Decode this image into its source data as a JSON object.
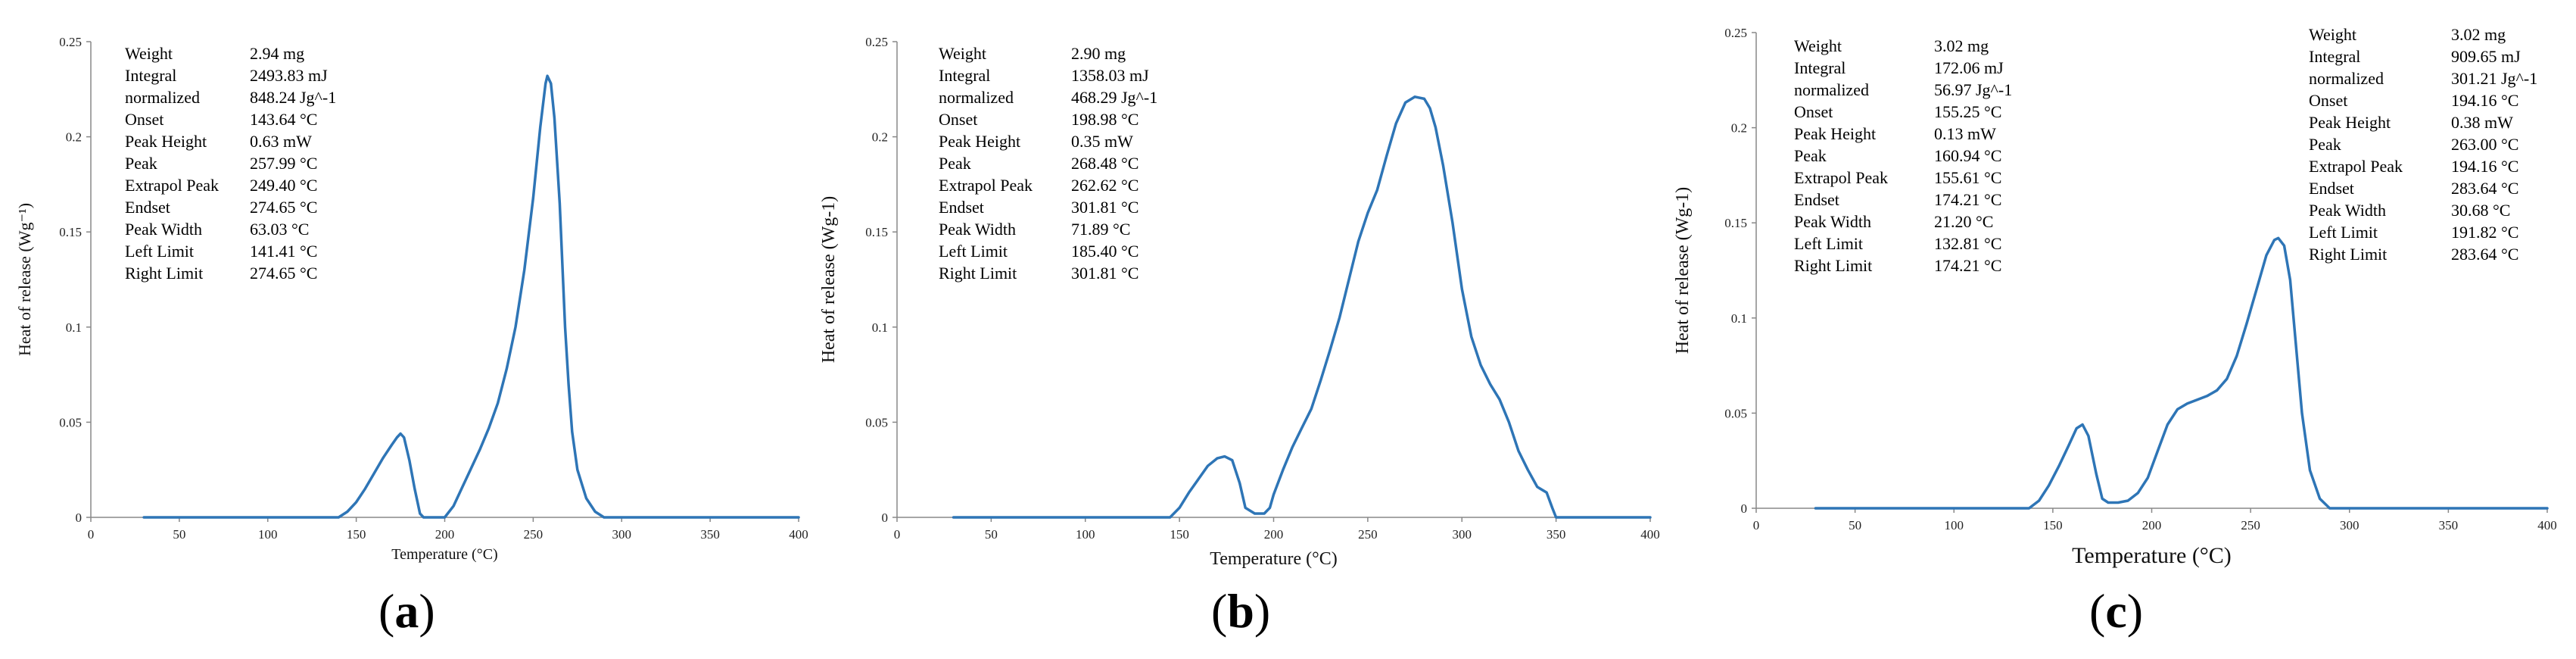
{
  "chart_data": [
    {
      "type": "line",
      "panel_label": "(a)",
      "panel_letter": "a",
      "xlabel": "Temperature (°C)",
      "ylabel": "Heat of release (Wg⁻¹)",
      "xlim": [
        0,
        400
      ],
      "ylim": [
        0,
        0.25
      ],
      "x_ticks": [
        0,
        50,
        100,
        150,
        200,
        250,
        300,
        350,
        400
      ],
      "y_ticks": [
        0,
        0.05,
        0.1,
        0.15,
        0.2,
        0.25
      ],
      "grid": false,
      "color": "#2E75B6",
      "series": [
        {
          "x": [
            30,
            140,
            145,
            150,
            155,
            160,
            165,
            170,
            173,
            175,
            177,
            180,
            183,
            186,
            188,
            200,
            205,
            210,
            215,
            220,
            225,
            230,
            235,
            240,
            245,
            250,
            254,
            257,
            258,
            260,
            262,
            265,
            268,
            270,
            272,
            275,
            280,
            285,
            290,
            300,
            400
          ],
          "y": [
            0,
            0,
            0.003,
            0.008,
            0.015,
            0.023,
            0.031,
            0.038,
            0.042,
            0.044,
            0.042,
            0.03,
            0.015,
            0.002,
            0,
            0,
            0.006,
            0.016,
            0.026,
            0.036,
            0.047,
            0.06,
            0.078,
            0.1,
            0.13,
            0.168,
            0.205,
            0.228,
            0.232,
            0.228,
            0.21,
            0.165,
            0.1,
            0.07,
            0.045,
            0.025,
            0.01,
            0.003,
            0,
            0,
            0
          ]
        }
      ],
      "stats": [
        {
          "label": "Weight",
          "value": "2.94 mg"
        },
        {
          "label": "Integral",
          "value": "2493.83 mJ"
        },
        {
          "label": "  normalized",
          "value": "848.24 Jg^-1"
        },
        {
          "label": "Onset",
          "value": "143.64 °C"
        },
        {
          "label": "Peak Height",
          "value": "0.63 mW"
        },
        {
          "label": "Peak",
          "value": "257.99 °C"
        },
        {
          "label": "Extrapol Peak",
          "value": "249.40 °C"
        },
        {
          "label": "Endset",
          "value": "274.65 °C"
        },
        {
          "label": "Peak Width",
          "value": "63.03 °C"
        },
        {
          "label": "Left Limit",
          "value": "141.41 °C"
        },
        {
          "label": "Right Limit",
          "value": "274.65 °C"
        }
      ]
    },
    {
      "type": "line",
      "panel_label": "(b)",
      "panel_letter": "b",
      "xlabel": "Temperature (°C)",
      "ylabel": "Heat of release (Wg-1)",
      "xlim": [
        0,
        400
      ],
      "ylim": [
        0,
        0.25
      ],
      "x_ticks": [
        0,
        50,
        100,
        150,
        200,
        250,
        300,
        350,
        400
      ],
      "y_ticks": [
        0,
        0.05,
        0.1,
        0.15,
        0.2,
        0.25
      ],
      "grid": false,
      "color": "#2E75B6",
      "series": [
        {
          "x": [
            30,
            145,
            150,
            155,
            160,
            165,
            170,
            174,
            178,
            182,
            185,
            190,
            195,
            198,
            200,
            205,
            210,
            215,
            220,
            225,
            230,
            235,
            240,
            245,
            250,
            255,
            260,
            265,
            270,
            275,
            280,
            283,
            286,
            290,
            295,
            300,
            305,
            310,
            315,
            320,
            325,
            330,
            335,
            340,
            345,
            348,
            350,
            400
          ],
          "y": [
            0,
            0,
            0.005,
            0.013,
            0.02,
            0.027,
            0.031,
            0.032,
            0.03,
            0.018,
            0.005,
            0.002,
            0.002,
            0.005,
            0.012,
            0.025,
            0.037,
            0.047,
            0.057,
            0.072,
            0.088,
            0.105,
            0.125,
            0.145,
            0.16,
            0.172,
            0.19,
            0.207,
            0.218,
            0.221,
            0.22,
            0.215,
            0.205,
            0.185,
            0.155,
            0.12,
            0.095,
            0.08,
            0.07,
            0.062,
            0.05,
            0.035,
            0.025,
            0.016,
            0.013,
            0.005,
            0,
            0
          ]
        }
      ],
      "stats": [
        {
          "label": "Weight",
          "value": "2.90 mg"
        },
        {
          "label": "Integral",
          "value": "1358.03 mJ"
        },
        {
          "label": "  normalized",
          "value": "468.29 Jg^-1"
        },
        {
          "label": "Onset",
          "value": "198.98 °C"
        },
        {
          "label": "Peak Height",
          "value": "0.35 mW"
        },
        {
          "label": "Peak",
          "value": "268.48 °C"
        },
        {
          "label": "Extrapol Peak",
          "value": "262.62 °C"
        },
        {
          "label": "Endset",
          "value": "301.81 °C"
        },
        {
          "label": "Peak Width",
          "value": "71.89 °C"
        },
        {
          "label": "Left Limit",
          "value": "185.40 °C"
        },
        {
          "label": "Right Limit",
          "value": "301.81 °C"
        }
      ]
    },
    {
      "type": "line",
      "panel_label": "(c)",
      "panel_letter": "c",
      "xlabel": "Temperature (°C)",
      "ylabel": "Heat of release (Wg-1)",
      "xlim": [
        0,
        400
      ],
      "ylim": [
        0,
        0.25
      ],
      "x_ticks": [
        0,
        50,
        100,
        150,
        200,
        250,
        300,
        350,
        400
      ],
      "y_ticks": [
        0,
        0.05,
        0.1,
        0.15,
        0.2,
        0.25
      ],
      "grid": false,
      "color": "#2E75B6",
      "series": [
        {
          "x": [
            30,
            138,
            143,
            148,
            153,
            158,
            162,
            165,
            168,
            172,
            175,
            178,
            183,
            188,
            193,
            198,
            203,
            208,
            213,
            218,
            223,
            228,
            233,
            238,
            243,
            248,
            253,
            258,
            262,
            264,
            267,
            270,
            273,
            276,
            280,
            285,
            290,
            400
          ],
          "y": [
            0,
            0,
            0.004,
            0.012,
            0.022,
            0.033,
            0.042,
            0.044,
            0.038,
            0.018,
            0.005,
            0.003,
            0.003,
            0.004,
            0.008,
            0.016,
            0.03,
            0.044,
            0.052,
            0.055,
            0.057,
            0.059,
            0.062,
            0.068,
            0.08,
            0.097,
            0.115,
            0.133,
            0.141,
            0.142,
            0.138,
            0.12,
            0.085,
            0.05,
            0.02,
            0.005,
            0,
            0
          ]
        }
      ],
      "stats": [
        {
          "label": "Weight",
          "value": "3.02 mg"
        },
        {
          "label": "Integral",
          "value": "172.06 mJ"
        },
        {
          "label": "  normalized",
          "value": "56.97 Jg^-1"
        },
        {
          "label": "Onset",
          "value": "155.25 °C"
        },
        {
          "label": "Peak Height",
          "value": "0.13 mW"
        },
        {
          "label": "Peak",
          "value": "160.94 °C"
        },
        {
          "label": "Extrapol Peak",
          "value": "155.61 °C"
        },
        {
          "label": "Endset",
          "value": "174.21 °C"
        },
        {
          "label": "Peak Width",
          "value": "21.20 °C"
        },
        {
          "label": "Left Limit",
          "value": "132.81 °C"
        },
        {
          "label": "Right Limit",
          "value": "174.21 °C"
        }
      ],
      "stats_2": [
        {
          "label": "Weight",
          "value": "3.02 mg"
        },
        {
          "label": "Integral",
          "value": "909.65 mJ"
        },
        {
          "label": "  normalized",
          "value": "301.21 Jg^-1"
        },
        {
          "label": "Onset",
          "value": "194.16 °C"
        },
        {
          "label": "Peak Height",
          "value": "0.38 mW"
        },
        {
          "label": "Peak",
          "value": "263.00 °C"
        },
        {
          "label": "Extrapol Peak",
          "value": "194.16 °C"
        },
        {
          "label": "Endset",
          "value": "283.64 °C"
        },
        {
          "label": "Peak Width",
          "value": "30.68 °C"
        },
        {
          "label": "Left Limit",
          "value": "191.82 °C"
        },
        {
          "label": "Right Limit",
          "value": "283.64 °C"
        }
      ]
    }
  ]
}
